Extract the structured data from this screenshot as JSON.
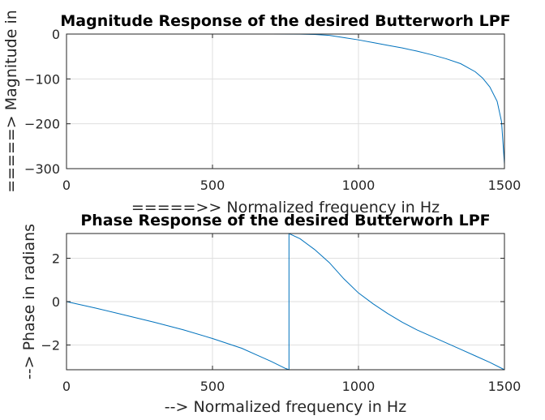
{
  "chart_data": [
    {
      "type": "line",
      "title": "Magnitude Response of the desired Butterworh LPF",
      "xlabel": "=====>>  Normalized frequency in Hz",
      "ylabel": "=====>  Magnitude in",
      "xlim": [
        0,
        1500
      ],
      "ylim": [
        -300,
        0
      ],
      "xticks": [
        0,
        500,
        1000,
        1500
      ],
      "yticks": [
        0,
        -100,
        -200,
        -300
      ],
      "grid": true,
      "color": "#0072bd",
      "series": [
        {
          "x": [
            0,
            100,
            200,
            300,
            400,
            500,
            600,
            700,
            800,
            850,
            900,
            950,
            1000,
            1050,
            1100,
            1150,
            1200,
            1250,
            1300,
            1350,
            1400,
            1425,
            1450,
            1475,
            1490,
            1500
          ],
          "values": [
            0,
            0,
            0,
            0,
            0,
            0,
            0,
            0,
            -0.3,
            -1,
            -3,
            -8,
            -13,
            -19,
            -25,
            -31,
            -38,
            -46,
            -55,
            -66,
            -84,
            -98,
            -118,
            -150,
            -195,
            -290
          ]
        }
      ]
    },
    {
      "type": "line",
      "title": "Phase Response of the desired Butterworh LPF",
      "xlabel": "--> Normalized frequency in Hz",
      "ylabel": "--> Phase in radians",
      "xlim": [
        0,
        1500
      ],
      "ylim": [
        -3.14,
        3.14
      ],
      "xticks": [
        0,
        500,
        1000,
        1500
      ],
      "yticks": [
        2,
        0,
        -2
      ],
      "grid": true,
      "color": "#0072bd",
      "series": [
        {
          "x": [
            0,
            100,
            200,
            300,
            400,
            500,
            600,
            650,
            700,
            750,
            762,
            762.01,
            800,
            850,
            900,
            950,
            1000,
            1050,
            1100,
            1150,
            1200,
            1250,
            1300,
            1350,
            1400,
            1450,
            1500
          ],
          "values": [
            0,
            -0.3,
            -0.62,
            -0.95,
            -1.3,
            -1.7,
            -2.15,
            -2.45,
            -2.75,
            -3.08,
            -3.14,
            3.14,
            2.9,
            2.4,
            1.8,
            1.05,
            0.4,
            -0.1,
            -0.55,
            -0.95,
            -1.3,
            -1.6,
            -1.9,
            -2.2,
            -2.5,
            -2.8,
            -3.14
          ]
        }
      ]
    }
  ]
}
